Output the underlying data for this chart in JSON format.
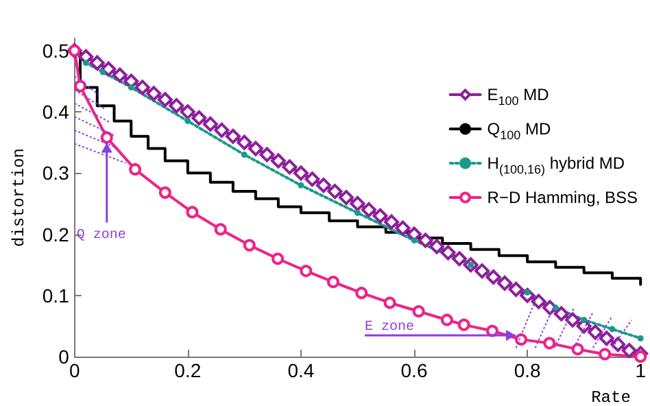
{
  "chart_data": {
    "type": "line",
    "xlabel": "Rate",
    "ylabel": "distortion",
    "xlim": [
      0,
      1
    ],
    "ylim": [
      0,
      0.52
    ],
    "xticks": [
      0,
      0.2,
      0.4,
      0.6,
      0.8,
      1
    ],
    "yticks": [
      0,
      0.1,
      0.2,
      0.3,
      0.4,
      0.5
    ],
    "grid": false,
    "legend": "right",
    "annotations": [
      {
        "text": "Q zone",
        "x": 0.057,
        "y": 0.358
      },
      {
        "text": "E zone",
        "x": 0.789,
        "y": 0.028
      }
    ],
    "series": [
      {
        "name": "E$_{100}$ MD",
        "color": "#8e1f9c",
        "marker": "diamond",
        "line_style": "solid",
        "x": [
          0,
          0.02,
          0.04,
          0.06,
          0.08,
          0.1,
          0.12,
          0.14,
          0.16,
          0.18,
          0.2,
          0.22,
          0.24,
          0.26,
          0.28,
          0.3,
          0.32,
          0.34,
          0.36,
          0.38,
          0.4,
          0.42,
          0.44,
          0.46,
          0.48,
          0.5,
          0.52,
          0.54,
          0.56,
          0.58,
          0.6,
          0.62,
          0.64,
          0.66,
          0.68,
          0.7,
          0.72,
          0.74,
          0.76,
          0.78,
          0.8,
          0.82,
          0.84,
          0.86,
          0.88,
          0.9,
          0.92,
          0.94,
          0.96,
          0.98,
          1
        ],
        "values": [
          0.5,
          0.49,
          0.48,
          0.47,
          0.46,
          0.45,
          0.44,
          0.43,
          0.42,
          0.41,
          0.4,
          0.39,
          0.38,
          0.37,
          0.36,
          0.35,
          0.34,
          0.33,
          0.32,
          0.31,
          0.3,
          0.29,
          0.28,
          0.27,
          0.26,
          0.25,
          0.24,
          0.23,
          0.22,
          0.21,
          0.2,
          0.19,
          0.18,
          0.17,
          0.16,
          0.15,
          0.14,
          0.13,
          0.12,
          0.11,
          0.1,
          0.09,
          0.08,
          0.07,
          0.06,
          0.05,
          0.04,
          0.03,
          0.02,
          0.01,
          0.005
        ]
      },
      {
        "name": "Q$_{100}$ MD",
        "color": "#000000",
        "type": "step",
        "marker": "none",
        "line_style": "solid",
        "x": [
          0,
          0.01,
          0.04,
          0.07,
          0.1,
          0.13,
          0.16,
          0.2,
          0.24,
          0.28,
          0.32,
          0.36,
          0.4,
          0.45,
          0.5,
          0.55,
          0.6,
          0.65,
          0.7,
          0.75,
          0.8,
          0.85,
          0.9,
          0.95,
          1
        ],
        "values": [
          0.5,
          0.44,
          0.41,
          0.385,
          0.36,
          0.34,
          0.32,
          0.3,
          0.285,
          0.27,
          0.258,
          0.245,
          0.235,
          0.222,
          0.212,
          0.203,
          0.194,
          0.185,
          0.175,
          0.165,
          0.155,
          0.146,
          0.137,
          0.128,
          0.118
        ]
      },
      {
        "name": "H$_{(100,16)}$ hybrid MD",
        "color": "#1a9a8a",
        "marker": "circle",
        "line_style": "dotted",
        "x": [
          0,
          0.02,
          0.05,
          0.1,
          0.2,
          0.3,
          0.4,
          0.5,
          0.6,
          0.7,
          0.8,
          0.85,
          0.9,
          0.95,
          1
        ],
        "values": [
          0.5,
          0.48,
          0.465,
          0.44,
          0.385,
          0.33,
          0.28,
          0.235,
          0.19,
          0.15,
          0.105,
          0.08,
          0.06,
          0.045,
          0.03
        ]
      },
      {
        "name": "R−D Hamming, BSS",
        "color": "#ee2288",
        "marker": "circle",
        "line_style": "solid",
        "x": [
          0,
          0.01,
          0.057,
          0.107,
          0.16,
          0.208,
          0.258,
          0.309,
          0.359,
          0.409,
          0.457,
          0.507,
          0.557,
          0.608,
          0.658,
          0.688,
          0.738,
          0.789,
          0.839,
          0.889,
          0.937,
          1
        ],
        "values": [
          0.5,
          0.442,
          0.358,
          0.306,
          0.268,
          0.236,
          0.208,
          0.182,
          0.16,
          0.14,
          0.122,
          0.104,
          0.088,
          0.074,
          0.06,
          0.052,
          0.042,
          0.028,
          0.022,
          0.012,
          0.004,
          0
        ]
      }
    ]
  }
}
